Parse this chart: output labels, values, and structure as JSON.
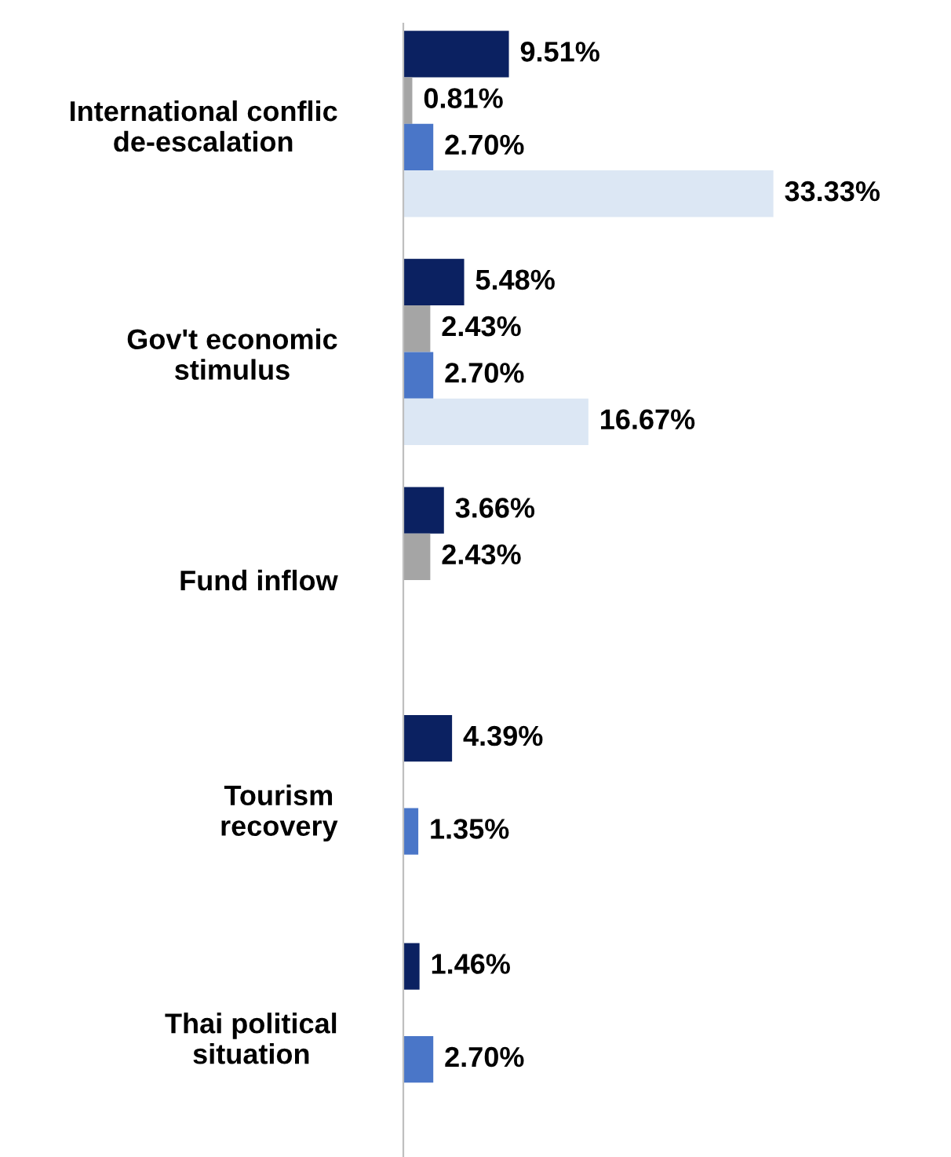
{
  "chart_data": {
    "type": "bar",
    "orientation": "horizontal",
    "categories": [
      "International conflic\nde-escalation",
      "Gov't economic\nstimulus",
      "Fund inflow",
      "Tourism\nrecovery",
      "Thai political\nsituation"
    ],
    "series": [
      {
        "color": "#0b2161",
        "values": [
          9.51,
          5.48,
          3.66,
          4.39,
          1.46
        ],
        "value_labels": [
          "9.51%",
          "5.48%",
          "3.66%",
          "4.39%",
          "1.46%"
        ]
      },
      {
        "color": "#a5a5a5",
        "values": [
          0.81,
          2.43,
          2.43,
          null,
          null
        ],
        "value_labels": [
          "0.81%",
          "2.43%",
          "2.43%",
          null,
          null
        ]
      },
      {
        "color": "#4a76c8",
        "values": [
          2.7,
          2.7,
          null,
          1.35,
          2.7
        ],
        "value_labels": [
          "2.70%",
          "2.70%",
          null,
          "1.35%",
          "2.70%"
        ]
      },
      {
        "color": "#dce7f4",
        "values": [
          33.33,
          16.67,
          null,
          null,
          null
        ],
        "value_labels": [
          "33.33%",
          "16.67%",
          null,
          null,
          null
        ]
      }
    ]
  }
}
